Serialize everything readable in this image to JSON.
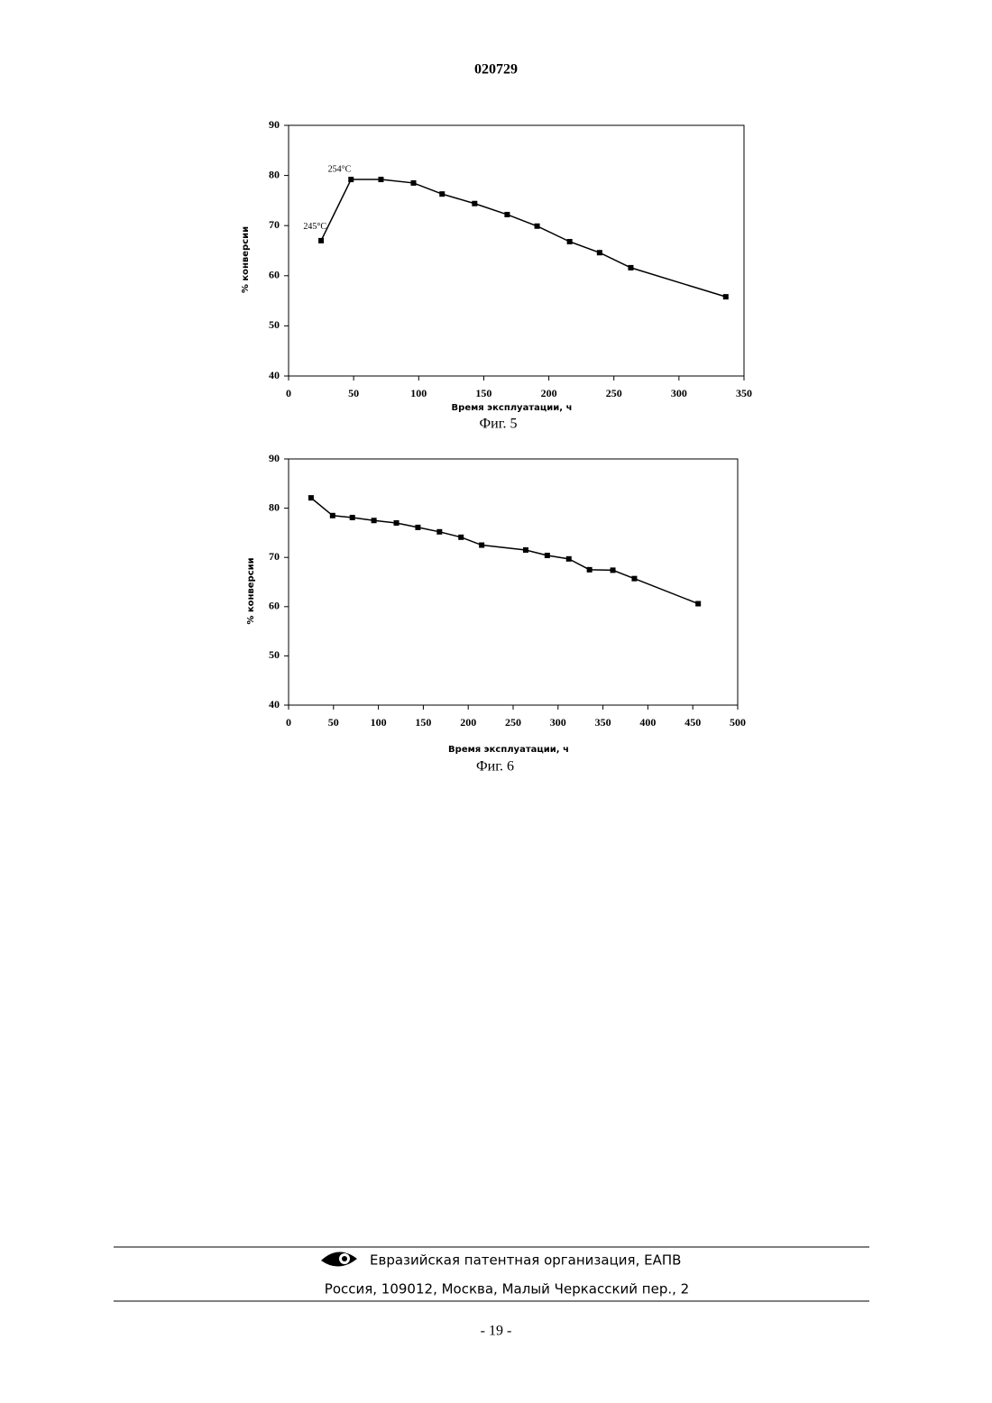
{
  "header": {
    "number": "020729"
  },
  "chart_data": [
    {
      "type": "line",
      "ylabel": "% конверсии",
      "xlabel": "Время эксплуатации, ч",
      "caption": "Фиг. 5",
      "annotations": [
        "245°C",
        "254°C"
      ],
      "x": [
        25,
        48,
        71,
        96,
        118,
        143,
        168,
        191,
        216,
        239,
        263,
        336
      ],
      "series": [
        {
          "color": "#000000",
          "values": [
            67.0,
            79.2,
            79.2,
            78.5,
            76.3,
            74.4,
            72.2,
            69.9,
            66.8,
            64.6,
            61.6,
            55.8
          ]
        }
      ],
      "xlim": [
        0,
        350
      ],
      "xticks": [
        0,
        50,
        100,
        150,
        200,
        250,
        300,
        350
      ],
      "ylim": [
        40,
        90
      ],
      "yticks": [
        40,
        50,
        60,
        70,
        80,
        90
      ]
    },
    {
      "type": "line",
      "ylabel": "% конверсии",
      "xlabel": "Время эксплуатации, ч",
      "caption": "Фиг. 6",
      "x": [
        25,
        49,
        71,
        95,
        120,
        144,
        168,
        192,
        215,
        264,
        288,
        312,
        335,
        361,
        385,
        456
      ],
      "series": [
        {
          "color": "#000000",
          "values": [
            82.1,
            78.5,
            78.1,
            77.5,
            77.0,
            76.1,
            75.2,
            74.1,
            72.5,
            71.5,
            70.4,
            69.7,
            67.5,
            67.4,
            65.7,
            60.6
          ]
        }
      ],
      "xlim": [
        0,
        500
      ],
      "xticks": [
        0,
        50,
        100,
        150,
        200,
        250,
        300,
        350,
        400,
        450,
        500
      ],
      "ylim": [
        40,
        90
      ],
      "yticks": [
        40,
        50,
        60,
        70,
        80,
        90
      ]
    }
  ],
  "footer": {
    "organization": "Евразийская патентная организация, ЕАПВ",
    "address": "Россия, 109012, Москва, Малый Черкасский пер., 2",
    "page": "- 19 -"
  }
}
